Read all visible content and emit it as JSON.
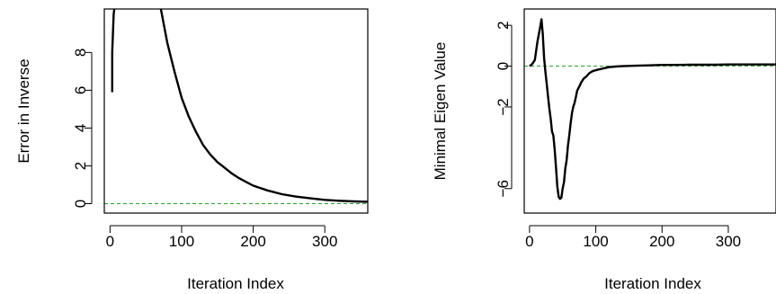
{
  "chart_data": [
    {
      "type": "line",
      "title": "",
      "xlabel": "Iteration Index",
      "ylabel": "Error in Inverse",
      "xlim": [
        -8,
        360
      ],
      "ylim": [
        -0.5,
        10.3
      ],
      "xticks": [
        0,
        100,
        200,
        300
      ],
      "xtick_labels": [
        "0",
        "100",
        "200",
        "300"
      ],
      "yticks": [
        0,
        2,
        4,
        6,
        8
      ],
      "ytick_labels": [
        "0",
        "2",
        "4",
        "6",
        "8"
      ],
      "grid": false,
      "legend": "none",
      "reference_line": {
        "y": 0,
        "style": "dashed",
        "color": "#2ca02c"
      },
      "series": [
        {
          "color": "#000000",
          "segments": [
            {
              "x": [
                3,
                3,
                5,
                6
              ],
              "y": [
                5.9,
                8.0,
                10.0,
                10.3
              ]
            },
            {
              "x": [
                71,
                75,
                80,
                90,
                100,
                110,
                120,
                130,
                140,
                150,
                160,
                170,
                180,
                190,
                200,
                220,
                240,
                260,
                280,
                300,
                320,
                340,
                360
              ],
              "y": [
                10.3,
                9.5,
                8.5,
                7.0,
                5.6,
                4.6,
                3.8,
                3.1,
                2.6,
                2.2,
                1.9,
                1.6,
                1.35,
                1.15,
                0.95,
                0.7,
                0.5,
                0.37,
                0.28,
                0.2,
                0.15,
                0.12,
                0.1
              ]
            }
          ]
        }
      ]
    },
    {
      "type": "line",
      "title": "",
      "xlabel": "Iteration Index",
      "ylabel": "Minimal Eigen Value",
      "xlim": [
        -8,
        372
      ],
      "ylim": [
        -7.2,
        2.8
      ],
      "xticks": [
        0,
        100,
        200,
        300
      ],
      "xtick_labels": [
        "0",
        "100",
        "200",
        "300"
      ],
      "yticks": [
        -6,
        -2,
        0,
        2
      ],
      "ytick_labels": [
        "−6",
        "−2",
        "0",
        "2"
      ],
      "grid": false,
      "legend": "none",
      "reference_line": {
        "y": 0,
        "style": "dashed",
        "color": "#2ca02c"
      },
      "series": [
        {
          "color": "#000000",
          "segments": [
            {
              "x": [
                0,
                4,
                8,
                12,
                16,
                18,
                20,
                22,
                24,
                26,
                28,
                30,
                32,
                34,
                36,
                38,
                40,
                42,
                44,
                46,
                48,
                50,
                52,
                54,
                56,
                58,
                60,
                62,
                64,
                66,
                68,
                70,
                72,
                75,
                78,
                82,
                86,
                90,
                95,
                100,
                110,
                120,
                130,
                140,
                160,
                180,
                200,
                220,
                240,
                260,
                280,
                300,
                320,
                340,
                360,
                372
              ],
              "y": [
                0.0,
                0.1,
                0.3,
                1.2,
                1.9,
                2.3,
                1.6,
                0.4,
                -0.3,
                -0.9,
                -1.5,
                -2.1,
                -2.6,
                -3.2,
                -3.4,
                -4.1,
                -5.0,
                -5.9,
                -6.4,
                -6.5,
                -6.45,
                -6.0,
                -5.7,
                -5.0,
                -4.6,
                -3.9,
                -3.4,
                -2.8,
                -2.3,
                -2.0,
                -1.8,
                -1.5,
                -1.2,
                -1.0,
                -0.8,
                -0.6,
                -0.5,
                -0.35,
                -0.25,
                -0.2,
                -0.12,
                -0.05,
                -0.02,
                0.0,
                0.02,
                0.04,
                0.06,
                0.06,
                0.07,
                0.07,
                0.07,
                0.08,
                0.08,
                0.08,
                0.08,
                0.08
              ]
            }
          ]
        }
      ]
    }
  ]
}
